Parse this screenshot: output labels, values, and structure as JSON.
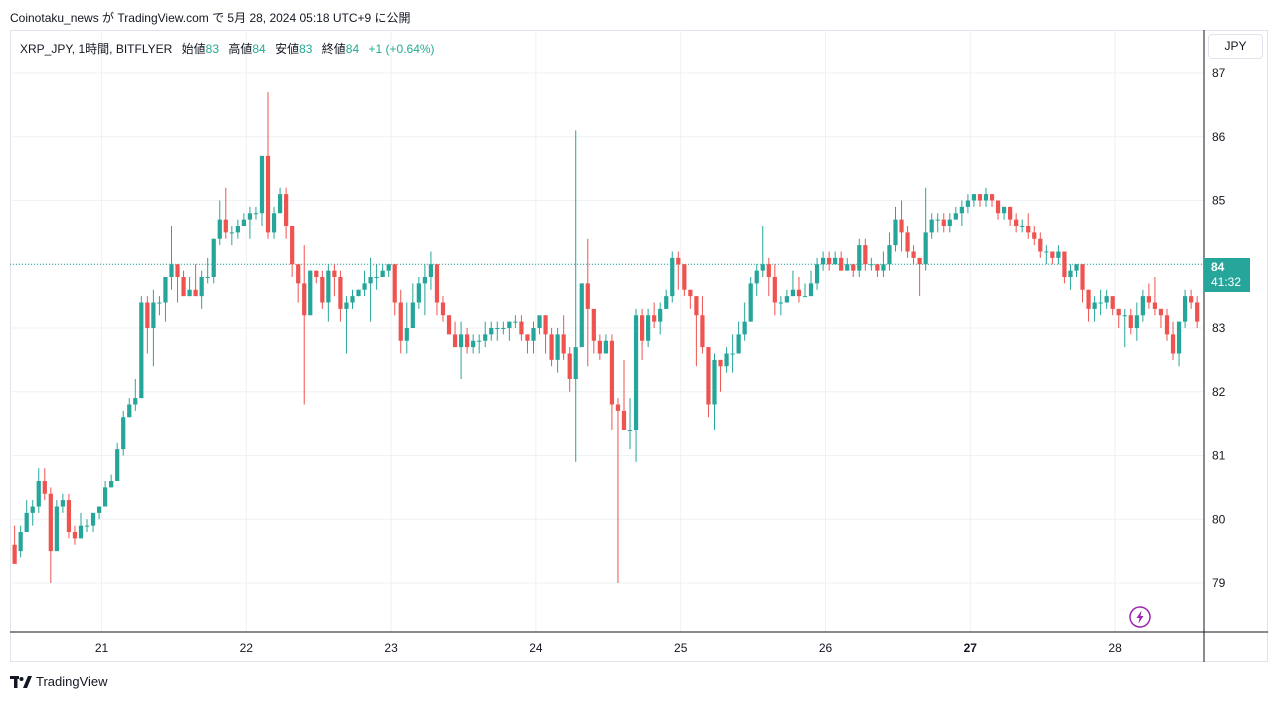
{
  "header": {
    "publish_line": "Coinotaku_news が TradingView.com で 5月 28, 2024 05:18 UTC+9 に公開"
  },
  "legend": {
    "symbol": "XRP_JPY, 1時間, BITFLYER",
    "open_label": "始値",
    "open_value": "83",
    "high_label": "高値",
    "high_value": "84",
    "low_label": "安値",
    "low_value": "83",
    "close_label": "終値",
    "close_value": "84",
    "change": "+1 (+0.64%)"
  },
  "currency_button": "JPY",
  "price_tag": {
    "value": "84",
    "countdown": "41:32"
  },
  "brand": {
    "name": "TradingView"
  },
  "icons": {
    "logo": "tradingview-logo-icon",
    "alert": "lightning-bolt-icon"
  },
  "colors": {
    "up": "#26a69a",
    "down": "#ef5350",
    "grid": "#eef1f5",
    "axis_text": "#131722",
    "current_price_line": "#26a69a",
    "bolt": "#9c27b0"
  },
  "chart_data": {
    "type": "candlestick",
    "title": "XRP_JPY, 1時間, BITFLYER",
    "x_ticks": [
      "21",
      "22",
      "23",
      "24",
      "25",
      "26",
      "27",
      "28"
    ],
    "bold_x_ticks": [
      "27"
    ],
    "y_ticks": [
      79,
      80,
      81,
      82,
      83,
      84,
      85,
      86,
      87
    ],
    "ylim": [
      78.3,
      87.3
    ],
    "current_price": 84.0,
    "grid": true,
    "start_day": 20.4,
    "bar_interval_days": 0.041667,
    "candles": [
      [
        79.6,
        79.3,
        79.9,
        79.5
      ],
      [
        79.5,
        79.8,
        79.9,
        79.4
      ],
      [
        79.8,
        80.1,
        80.3,
        79.8
      ],
      [
        80.1,
        80.2,
        80.3,
        79.9
      ],
      [
        80.2,
        80.6,
        80.8,
        80.1
      ],
      [
        80.6,
        80.4,
        80.8,
        80.3
      ],
      [
        80.4,
        79.5,
        80.5,
        79.0
      ],
      [
        79.5,
        80.2,
        80.3,
        79.5
      ],
      [
        80.2,
        80.3,
        80.4,
        80.1
      ],
      [
        80.3,
        79.8,
        80.4,
        79.7
      ],
      [
        79.8,
        79.7,
        79.9,
        79.6
      ],
      [
        79.7,
        79.9,
        80.1,
        79.7
      ],
      [
        79.9,
        79.9,
        80.0,
        79.8
      ],
      [
        79.9,
        80.1,
        80.1,
        79.8
      ],
      [
        80.1,
        80.2,
        80.2,
        80.0
      ],
      [
        80.2,
        80.5,
        80.6,
        80.2
      ],
      [
        80.5,
        80.6,
        80.7,
        80.5
      ],
      [
        80.6,
        81.1,
        81.2,
        80.6
      ],
      [
        81.1,
        81.6,
        81.7,
        81.0
      ],
      [
        81.6,
        81.8,
        81.9,
        81.6
      ],
      [
        81.8,
        81.9,
        82.2,
        81.7
      ],
      [
        81.9,
        83.4,
        83.5,
        81.9
      ],
      [
        83.4,
        83.0,
        83.5,
        82.6
      ],
      [
        83.0,
        83.4,
        83.6,
        82.4
      ],
      [
        83.4,
        83.4,
        83.5,
        83.2
      ],
      [
        83.4,
        83.8,
        83.8,
        83.1
      ],
      [
        83.8,
        84.0,
        84.6,
        83.6
      ],
      [
        84.0,
        83.8,
        84.0,
        83.4
      ],
      [
        83.8,
        83.5,
        83.9,
        83.5
      ],
      [
        83.5,
        83.6,
        83.8,
        83.5
      ],
      [
        83.6,
        83.5,
        84.0,
        83.5
      ],
      [
        83.5,
        83.8,
        83.9,
        83.3
      ],
      [
        83.8,
        83.8,
        84.1,
        83.7
      ],
      [
        83.8,
        84.4,
        84.4,
        83.7
      ],
      [
        84.4,
        84.7,
        85.0,
        84.3
      ],
      [
        84.7,
        84.5,
        85.2,
        84.4
      ],
      [
        84.5,
        84.5,
        84.6,
        84.3
      ],
      [
        84.5,
        84.6,
        84.7,
        84.4
      ],
      [
        84.6,
        84.7,
        84.8,
        84.6
      ],
      [
        84.7,
        84.8,
        84.9,
        84.4
      ],
      [
        84.8,
        84.8,
        84.9,
        84.7
      ],
      [
        84.8,
        85.7,
        85.7,
        84.6
      ],
      [
        85.7,
        84.5,
        86.7,
        84.4
      ],
      [
        84.5,
        84.8,
        84.9,
        84.4
      ],
      [
        84.8,
        85.1,
        85.2,
        84.9
      ],
      [
        85.1,
        84.6,
        85.2,
        84.4
      ],
      [
        84.6,
        84.0,
        84.6,
        83.8
      ],
      [
        84.0,
        83.7,
        84.0,
        83.4
      ],
      [
        83.7,
        83.2,
        84.3,
        81.8
      ],
      [
        83.2,
        83.9,
        83.9,
        83.2
      ],
      [
        83.9,
        83.8,
        83.9,
        83.7
      ],
      [
        83.8,
        83.4,
        83.9,
        83.3
      ],
      [
        83.4,
        83.9,
        84.0,
        83.1
      ],
      [
        83.9,
        83.8,
        84.0,
        83.5
      ],
      [
        83.8,
        83.3,
        83.9,
        83.1
      ],
      [
        83.3,
        83.4,
        83.5,
        82.6
      ],
      [
        83.4,
        83.5,
        83.6,
        83.3
      ],
      [
        83.5,
        83.6,
        83.6,
        83.5
      ],
      [
        83.6,
        83.7,
        83.9,
        83.5
      ],
      [
        83.7,
        83.8,
        84.1,
        83.1
      ],
      [
        83.8,
        83.8,
        84.0,
        83.6
      ],
      [
        83.8,
        83.9,
        84.0,
        83.8
      ],
      [
        83.9,
        84.0,
        84.0,
        83.8
      ],
      [
        84.0,
        83.4,
        84.0,
        83.2
      ],
      [
        83.4,
        82.8,
        83.6,
        82.6
      ],
      [
        82.8,
        83.0,
        83.4,
        82.6
      ],
      [
        83.0,
        83.4,
        83.7,
        83.0
      ],
      [
        83.4,
        83.7,
        83.8,
        83.3
      ],
      [
        83.7,
        83.8,
        84.0,
        83.2
      ],
      [
        83.8,
        84.0,
        84.2,
        83.6
      ],
      [
        84.0,
        83.4,
        84.0,
        83.2
      ],
      [
        83.4,
        83.2,
        83.5,
        83.1
      ],
      [
        83.2,
        82.9,
        83.2,
        82.9
      ],
      [
        82.9,
        82.7,
        83.1,
        82.7
      ],
      [
        82.7,
        82.9,
        83.1,
        82.2
      ],
      [
        82.9,
        82.7,
        83.0,
        82.6
      ],
      [
        82.7,
        82.8,
        82.9,
        82.6
      ],
      [
        82.8,
        82.8,
        82.9,
        82.6
      ],
      [
        82.8,
        82.9,
        83.1,
        82.7
      ],
      [
        82.9,
        83.0,
        83.1,
        82.8
      ],
      [
        83.0,
        83.0,
        83.1,
        82.8
      ],
      [
        83.0,
        83.0,
        83.1,
        82.9
      ],
      [
        83.0,
        83.1,
        83.1,
        82.8
      ],
      [
        83.1,
        83.1,
        83.2,
        83.0
      ],
      [
        83.1,
        82.9,
        83.2,
        82.8
      ],
      [
        82.9,
        82.8,
        82.9,
        82.6
      ],
      [
        82.8,
        83.0,
        83.1,
        82.6
      ],
      [
        83.0,
        83.2,
        83.1,
        82.9
      ],
      [
        83.2,
        82.9,
        83.2,
        82.6
      ],
      [
        82.9,
        82.5,
        83.0,
        82.4
      ],
      [
        82.5,
        82.9,
        83.0,
        82.3
      ],
      [
        82.9,
        82.6,
        83.2,
        82.5
      ],
      [
        82.6,
        82.2,
        82.7,
        82.0
      ],
      [
        82.2,
        82.7,
        86.1,
        80.9
      ],
      [
        82.7,
        83.7,
        83.7,
        82.7
      ],
      [
        83.7,
        83.3,
        84.4,
        82.4
      ],
      [
        83.3,
        82.8,
        83.3,
        82.6
      ],
      [
        82.8,
        82.6,
        82.9,
        82.5
      ],
      [
        82.6,
        82.8,
        82.9,
        82.6
      ],
      [
        82.8,
        81.8,
        82.9,
        81.4
      ],
      [
        81.8,
        81.7,
        81.9,
        79.0
      ],
      [
        81.7,
        81.4,
        82.5,
        81.4
      ],
      [
        81.4,
        81.4,
        81.9,
        81.1
      ],
      [
        81.4,
        83.2,
        83.3,
        80.9
      ],
      [
        83.2,
        82.8,
        83.3,
        82.5
      ],
      [
        82.8,
        83.2,
        83.3,
        82.7
      ],
      [
        83.2,
        83.1,
        83.4,
        83.0
      ],
      [
        83.1,
        83.3,
        83.4,
        82.9
      ],
      [
        83.3,
        83.5,
        83.6,
        83.3
      ],
      [
        83.5,
        84.1,
        84.2,
        83.4
      ],
      [
        84.1,
        84.0,
        84.2,
        83.6
      ],
      [
        84.0,
        83.6,
        84.0,
        83.5
      ],
      [
        83.6,
        83.5,
        83.6,
        83.3
      ],
      [
        83.5,
        83.2,
        83.5,
        82.4
      ],
      [
        83.2,
        82.7,
        83.5,
        82.6
      ],
      [
        82.7,
        81.8,
        82.7,
        81.6
      ],
      [
        81.8,
        82.5,
        82.6,
        81.4
      ],
      [
        82.5,
        82.4,
        82.5,
        82.0
      ],
      [
        82.4,
        82.6,
        82.7,
        82.3
      ],
      [
        82.6,
        82.6,
        82.9,
        82.3
      ],
      [
        82.6,
        82.9,
        83.1,
        82.6
      ],
      [
        82.9,
        83.1,
        83.4,
        82.8
      ],
      [
        83.1,
        83.7,
        83.8,
        83.1
      ],
      [
        83.7,
        83.9,
        84.0,
        83.5
      ],
      [
        83.9,
        84.0,
        84.6,
        83.8
      ],
      [
        84.0,
        83.8,
        84.1,
        83.5
      ],
      [
        83.8,
        83.4,
        84.0,
        83.2
      ],
      [
        83.4,
        83.4,
        83.5,
        83.2
      ],
      [
        83.4,
        83.5,
        83.6,
        83.4
      ],
      [
        83.5,
        83.6,
        83.9,
        83.5
      ],
      [
        83.6,
        83.5,
        83.8,
        83.4
      ],
      [
        83.5,
        83.5,
        83.7,
        83.5
      ],
      [
        83.5,
        83.7,
        83.9,
        83.5
      ],
      [
        83.7,
        84.0,
        84.1,
        83.6
      ],
      [
        84.0,
        84.1,
        84.2,
        83.9
      ],
      [
        84.1,
        84.0,
        84.2,
        83.9
      ],
      [
        84.0,
        84.1,
        84.2,
        84.0
      ],
      [
        84.1,
        83.9,
        84.2,
        83.9
      ],
      [
        83.9,
        84.0,
        84.1,
        83.9
      ],
      [
        84.0,
        83.9,
        84.0,
        83.8
      ],
      [
        83.9,
        84.3,
        84.4,
        83.8
      ],
      [
        84.3,
        84.0,
        84.4,
        83.9
      ],
      [
        84.0,
        84.0,
        84.1,
        83.9
      ],
      [
        84.0,
        83.9,
        84.0,
        83.8
      ],
      [
        83.9,
        84.0,
        84.2,
        83.8
      ],
      [
        84.0,
        84.3,
        84.5,
        83.9
      ],
      [
        84.3,
        84.7,
        84.9,
        84.2
      ],
      [
        84.7,
        84.5,
        85.0,
        84.2
      ],
      [
        84.5,
        84.2,
        84.6,
        84.1
      ],
      [
        84.2,
        84.1,
        84.3,
        84.0
      ],
      [
        84.1,
        84.0,
        84.1,
        83.5
      ],
      [
        84.0,
        84.5,
        85.2,
        83.9
      ],
      [
        84.5,
        84.7,
        84.8,
        84.4
      ],
      [
        84.7,
        84.7,
        84.8,
        84.5
      ],
      [
        84.7,
        84.6,
        84.8,
        84.5
      ],
      [
        84.6,
        84.7,
        84.8,
        84.5
      ],
      [
        84.7,
        84.8,
        84.9,
        84.7
      ],
      [
        84.8,
        84.9,
        85.0,
        84.6
      ],
      [
        84.9,
        85.0,
        85.1,
        84.8
      ],
      [
        85.0,
        85.1,
        85.1,
        84.9
      ],
      [
        85.1,
        85.0,
        85.1,
        84.9
      ],
      [
        85.0,
        85.1,
        85.2,
        84.9
      ],
      [
        85.1,
        85.0,
        85.1,
        84.9
      ],
      [
        85.0,
        84.8,
        85.0,
        84.7
      ],
      [
        84.8,
        84.9,
        84.9,
        84.7
      ],
      [
        84.9,
        84.7,
        84.9,
        84.6
      ],
      [
        84.7,
        84.6,
        84.8,
        84.5
      ],
      [
        84.6,
        84.6,
        84.7,
        84.5
      ],
      [
        84.6,
        84.5,
        84.8,
        84.4
      ],
      [
        84.5,
        84.4,
        84.6,
        84.3
      ],
      [
        84.4,
        84.2,
        84.5,
        84.1
      ],
      [
        84.2,
        84.2,
        84.3,
        84.0
      ],
      [
        84.2,
        84.1,
        84.2,
        84.0
      ],
      [
        84.1,
        84.2,
        84.3,
        84.0
      ],
      [
        84.2,
        83.8,
        84.2,
        83.7
      ],
      [
        83.8,
        83.9,
        84.0,
        83.6
      ],
      [
        83.9,
        84.0,
        84.0,
        83.8
      ],
      [
        84.0,
        83.6,
        84.0,
        83.4
      ],
      [
        83.6,
        83.3,
        83.6,
        83.1
      ],
      [
        83.3,
        83.4,
        83.5,
        83.1
      ],
      [
        83.4,
        83.4,
        83.6,
        83.2
      ],
      [
        83.4,
        83.5,
        83.6,
        83.3
      ],
      [
        83.5,
        83.3,
        83.5,
        83.2
      ],
      [
        83.3,
        83.2,
        83.3,
        83.0
      ],
      [
        83.2,
        83.2,
        83.3,
        82.7
      ],
      [
        83.2,
        83.0,
        83.3,
        82.9
      ],
      [
        83.0,
        83.2,
        83.4,
        82.8
      ],
      [
        83.2,
        83.5,
        83.6,
        83.1
      ],
      [
        83.5,
        83.4,
        83.7,
        83.3
      ],
      [
        83.4,
        83.3,
        83.8,
        83.2
      ],
      [
        83.3,
        83.2,
        83.3,
        83.0
      ],
      [
        83.2,
        82.9,
        83.3,
        82.8
      ],
      [
        82.9,
        82.6,
        83.1,
        82.5
      ],
      [
        82.6,
        83.1,
        83.1,
        82.4
      ],
      [
        83.1,
        83.5,
        83.6,
        83.0
      ],
      [
        83.5,
        83.4,
        83.6,
        83.3
      ],
      [
        83.4,
        83.1,
        83.5,
        83.0
      ],
      [
        83.1,
        83.0,
        83.2,
        82.9
      ],
      [
        83.0,
        83.2,
        83.6,
        83.0
      ],
      [
        83.2,
        83.3,
        83.5,
        83.1
      ],
      [
        83.3,
        83.7,
        83.8,
        83.2
      ],
      [
        83.7,
        84.0,
        84.5,
        83.7
      ],
      [
        84.0,
        84.5,
        84.8,
        84.0
      ],
      [
        84.5,
        84.5,
        84.9,
        84.3
      ],
      [
        84.5,
        84.3,
        84.7,
        84.2
      ],
      [
        84.3,
        84.1,
        84.5,
        84.0
      ],
      [
        84.1,
        83.4,
        84.2,
        83.0
      ],
      [
        83.4,
        84.0,
        84.0,
        83.4
      ]
    ]
  }
}
